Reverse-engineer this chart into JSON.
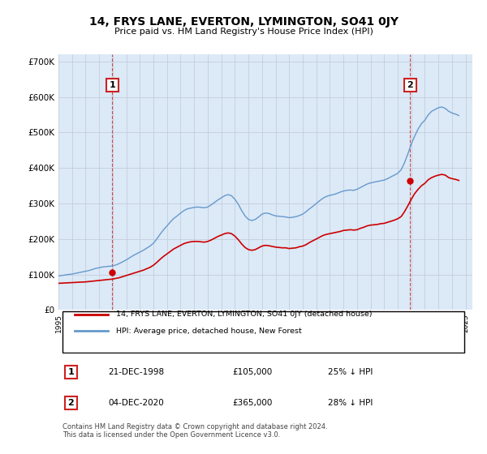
{
  "title": "14, FRYS LANE, EVERTON, LYMINGTON, SO41 0JY",
  "subtitle": "Price paid vs. HM Land Registry's House Price Index (HPI)",
  "ylabel": "",
  "background_color": "#dce9f7",
  "plot_bg_color": "#dce9f7",
  "ylim": [
    0,
    720000
  ],
  "yticks": [
    0,
    100000,
    200000,
    300000,
    400000,
    500000,
    600000,
    700000
  ],
  "ytick_labels": [
    "£0",
    "£100K",
    "£200K",
    "£300K",
    "£400K",
    "£500K",
    "£600K",
    "£700K"
  ],
  "sale1_date": 1998.97,
  "sale1_price": 105000,
  "sale2_date": 2020.92,
  "sale2_price": 365000,
  "red_line_color": "#cc0000",
  "blue_line_color": "#6699cc",
  "marker_color": "#cc0000",
  "vline_color": "#cc2222",
  "annotation1_label": "1",
  "annotation2_label": "2",
  "legend_line1": "14, FRYS LANE, EVERTON, LYMINGTON, SO41 0JY (detached house)",
  "legend_line2": "HPI: Average price, detached house, New Forest",
  "table_row1": [
    "1",
    "21-DEC-1998",
    "£105,000",
    "25% ↓ HPI"
  ],
  "table_row2": [
    "2",
    "04-DEC-2020",
    "£365,000",
    "28% ↓ HPI"
  ],
  "footer": "Contains HM Land Registry data © Crown copyright and database right 2024.\nThis data is licensed under the Open Government Licence v3.0.",
  "hpi_years": [
    1995,
    1995.25,
    1995.5,
    1995.75,
    1996,
    1996.25,
    1996.5,
    1996.75,
    1997,
    1997.25,
    1997.5,
    1997.75,
    1998,
    1998.25,
    1998.5,
    1998.75,
    1999,
    1999.25,
    1999.5,
    1999.75,
    2000,
    2000.25,
    2000.5,
    2000.75,
    2001,
    2001.25,
    2001.5,
    2001.75,
    2002,
    2002.25,
    2002.5,
    2002.75,
    2003,
    2003.25,
    2003.5,
    2003.75,
    2004,
    2004.25,
    2004.5,
    2004.75,
    2005,
    2005.25,
    2005.5,
    2005.75,
    2006,
    2006.25,
    2006.5,
    2006.75,
    2007,
    2007.25,
    2007.5,
    2007.75,
    2008,
    2008.25,
    2008.5,
    2008.75,
    2009,
    2009.25,
    2009.5,
    2009.75,
    2010,
    2010.25,
    2010.5,
    2010.75,
    2011,
    2011.25,
    2011.5,
    2011.75,
    2012,
    2012.25,
    2012.5,
    2012.75,
    2013,
    2013.25,
    2013.5,
    2013.75,
    2014,
    2014.25,
    2014.5,
    2014.75,
    2015,
    2015.25,
    2015.5,
    2015.75,
    2016,
    2016.25,
    2016.5,
    2016.75,
    2017,
    2017.25,
    2017.5,
    2017.75,
    2018,
    2018.25,
    2018.5,
    2018.75,
    2019,
    2019.25,
    2019.5,
    2019.75,
    2020,
    2020.25,
    2020.5,
    2020.75,
    2021,
    2021.25,
    2021.5,
    2021.75,
    2022,
    2022.25,
    2022.5,
    2022.75,
    2023,
    2023.25,
    2023.5,
    2023.75,
    2024,
    2024.25,
    2024.5
  ],
  "hpi_values": [
    96000,
    97000,
    98500,
    100000,
    101000,
    103000,
    105000,
    107000,
    109000,
    111000,
    114000,
    117000,
    119000,
    121000,
    122000,
    123000,
    124000,
    127000,
    131000,
    136000,
    141000,
    147000,
    153000,
    158000,
    163000,
    168000,
    174000,
    180000,
    188000,
    200000,
    214000,
    226000,
    237000,
    248000,
    258000,
    265000,
    273000,
    280000,
    285000,
    287000,
    289000,
    290000,
    289000,
    288000,
    290000,
    296000,
    303000,
    310000,
    316000,
    322000,
    325000,
    322000,
    312000,
    298000,
    280000,
    265000,
    255000,
    252000,
    255000,
    262000,
    270000,
    273000,
    272000,
    268000,
    265000,
    264000,
    263000,
    262000,
    260000,
    261000,
    263000,
    266000,
    270000,
    277000,
    285000,
    292000,
    300000,
    308000,
    315000,
    320000,
    323000,
    325000,
    328000,
    332000,
    335000,
    337000,
    338000,
    337000,
    340000,
    345000,
    350000,
    355000,
    358000,
    360000,
    362000,
    364000,
    366000,
    370000,
    375000,
    380000,
    385000,
    395000,
    415000,
    440000,
    468000,
    490000,
    510000,
    525000,
    535000,
    550000,
    560000,
    565000,
    570000,
    572000,
    568000,
    560000,
    555000,
    552000,
    548000
  ],
  "red_years": [
    1995,
    1995.25,
    1995.5,
    1995.75,
    1996,
    1996.25,
    1996.5,
    1996.75,
    1997,
    1997.25,
    1997.5,
    1997.75,
    1998,
    1998.25,
    1998.5,
    1998.75,
    1999,
    1999.25,
    1999.5,
    1999.75,
    2000,
    2000.25,
    2000.5,
    2000.75,
    2001,
    2001.25,
    2001.5,
    2001.75,
    2002,
    2002.25,
    2002.5,
    2002.75,
    2003,
    2003.25,
    2003.5,
    2003.75,
    2004,
    2004.25,
    2004.5,
    2004.75,
    2005,
    2005.25,
    2005.5,
    2005.75,
    2006,
    2006.25,
    2006.5,
    2006.75,
    2007,
    2007.25,
    2007.5,
    2007.75,
    2008,
    2008.25,
    2008.5,
    2008.75,
    2009,
    2009.25,
    2009.5,
    2009.75,
    2010,
    2010.25,
    2010.5,
    2010.75,
    2011,
    2011.25,
    2011.5,
    2011.75,
    2012,
    2012.25,
    2012.5,
    2012.75,
    2013,
    2013.25,
    2013.5,
    2013.75,
    2014,
    2014.25,
    2014.5,
    2014.75,
    2015,
    2015.25,
    2015.5,
    2015.75,
    2016,
    2016.25,
    2016.5,
    2016.75,
    2017,
    2017.25,
    2017.5,
    2017.75,
    2018,
    2018.25,
    2018.5,
    2018.75,
    2019,
    2019.25,
    2019.5,
    2019.75,
    2020,
    2020.25,
    2020.5,
    2020.75,
    2021,
    2021.25,
    2021.5,
    2021.75,
    2022,
    2022.25,
    2022.5,
    2022.75,
    2023,
    2023.25,
    2023.5,
    2023.75,
    2024,
    2024.25,
    2024.5
  ],
  "red_values": [
    75000,
    75500,
    76000,
    76500,
    77000,
    77500,
    78000,
    78500,
    79000,
    80000,
    81000,
    82000,
    83000,
    84000,
    85000,
    86000,
    87000,
    89000,
    91000,
    94000,
    97000,
    100000,
    103000,
    106000,
    109000,
    112000,
    116000,
    120000,
    126000,
    134000,
    143000,
    151000,
    158000,
    165000,
    172000,
    177000,
    182000,
    187000,
    190000,
    192000,
    193000,
    193000,
    192000,
    191000,
    193000,
    197000,
    202000,
    207000,
    211000,
    215000,
    217000,
    215000,
    208000,
    198000,
    186000,
    176000,
    170000,
    168000,
    170000,
    175000,
    180000,
    182000,
    181000,
    179000,
    177000,
    176000,
    175000,
    175000,
    173000,
    174000,
    175000,
    178000,
    180000,
    184000,
    190000,
    195000,
    200000,
    205000,
    210000,
    213000,
    215000,
    217000,
    219000,
    221000,
    224000,
    225000,
    226000,
    225000,
    226000,
    230000,
    233000,
    237000,
    239000,
    240000,
    241000,
    243000,
    244000,
    247000,
    250000,
    253000,
    257000,
    263000,
    277000,
    294000,
    312000,
    328000,
    340000,
    350000,
    357000,
    367000,
    373000,
    377000,
    380000,
    382000,
    380000,
    373000,
    370000,
    368000,
    365000
  ]
}
